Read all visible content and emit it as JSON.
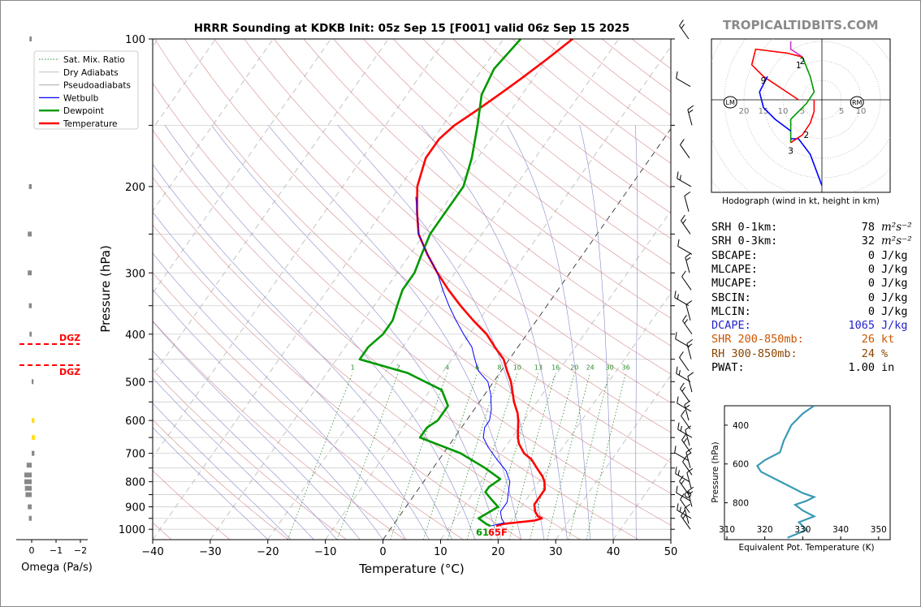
{
  "title": "HRRR Sounding at KDKB Init: 05z Sep 15 [F001] valid 06z Sep 15 2025",
  "brand": "TROPICALTIDBITS.COM",
  "colors": {
    "temperature": "#ff0000",
    "dewpoint": "#009900",
    "wetbulb": "#0000ff",
    "dry_adiabat": "#d68a8a",
    "moist_adiabat": "#8888cc",
    "mixing_ratio": "#2e8b2e",
    "hodo_0_1": "#cc33cc",
    "hodo_1_3": "#ff0000",
    "hodo_3_6": "#009900",
    "hodo_6_9": "#0000ff",
    "theta_e": "#3a9ab5",
    "dgz": "#ff0000",
    "dcape": "#2222cc",
    "shear": "#cc5500",
    "rh": "#8b4500"
  },
  "legend": [
    "Sat. Mix. Ratio",
    "Dry Adiabats",
    "Pseudoadiabats",
    "Wetbulb",
    "Dewpoint",
    "Temperature"
  ],
  "surface_label": "61",
  "surface_label_t": "65F",
  "dgz_label": "DGZ",
  "omega_label": "Omega (Pa/s)",
  "omega_ticks": [
    "0",
    "−1",
    "−2"
  ],
  "hodograph": {
    "caption": "Hodograph (wind in kt, height in km)",
    "lm_label": "LM",
    "rm_label": "RM",
    "ring_labels": [
      "20",
      "15",
      "10",
      "5",
      "5",
      "10"
    ],
    "height_labels": [
      "1",
      "2",
      "2",
      "3",
      "9"
    ]
  },
  "theta_e": {
    "ylabel": "Pressure (hPa)",
    "xlabel": "Equivalent Pot. Temperature (K)",
    "xticks": [
      "310",
      "320",
      "330",
      "340",
      "350"
    ],
    "yticks": [
      "400",
      "600",
      "800"
    ]
  },
  "stats": [
    {
      "label": "SRH 0-1km:",
      "value": "78",
      "unit": "m²s⁻²",
      "color": "#000000"
    },
    {
      "label": "SRH 0-3km:",
      "value": "32",
      "unit": "m²s⁻²",
      "color": "#000000"
    },
    {
      "label": "SBCAPE:",
      "value": "0",
      "unit": "J/kg",
      "color": "#000000"
    },
    {
      "label": "MLCAPE:",
      "value": "0",
      "unit": "J/kg",
      "color": "#000000"
    },
    {
      "label": "MUCAPE:",
      "value": "0",
      "unit": "J/kg",
      "color": "#000000"
    },
    {
      "label": "SBCIN:",
      "value": "0",
      "unit": "J/kg",
      "color": "#000000"
    },
    {
      "label": "MLCIN:",
      "value": "0",
      "unit": "J/kg",
      "color": "#000000"
    },
    {
      "label": "DCAPE:",
      "value": "1065",
      "unit": "J/kg",
      "color": "#2222cc"
    },
    {
      "label": "SHR 200-850mb:",
      "value": "26",
      "unit": "kt",
      "color": "#cc5500"
    },
    {
      "label": "RH 300-850mb:",
      "value": "24",
      "unit": "%",
      "color": "#8b4500"
    },
    {
      "label": "PWAT:",
      "value": "1.00",
      "unit": "in",
      "color": "#000000"
    }
  ],
  "chart_data": {
    "type": "line",
    "title": "HRRR Sounding at KDKB Init: 05z Sep 15 [F001] valid 06z Sep 15 2025",
    "xlabel": "Temperature (°C)",
    "ylabel": "Pressure (hPa)",
    "xlim": [
      -40,
      50
    ],
    "ylim": [
      1050,
      100
    ],
    "yscale": "log",
    "grid": true,
    "legend_position": "top-left",
    "x_ticks": [
      -40,
      -30,
      -20,
      -10,
      0,
      10,
      20,
      30,
      40,
      50
    ],
    "y_ticks": [
      100,
      200,
      300,
      400,
      500,
      600,
      700,
      800,
      900,
      1000
    ],
    "mixing_ratio_labels": [
      "1",
      "2",
      "4",
      "6",
      "8",
      "10",
      "13",
      "16",
      "20",
      "24",
      "30",
      "36"
    ],
    "mixing_ratio_values": [
      1,
      2,
      4,
      6,
      8,
      10,
      13,
      16,
      20,
      24,
      30,
      36
    ],
    "series": [
      {
        "name": "Temperature",
        "points": [
          [
            18,
            985
          ],
          [
            19,
            975
          ],
          [
            24,
            960
          ],
          [
            25,
            950
          ],
          [
            24,
            940
          ],
          [
            23,
            920
          ],
          [
            22,
            890
          ],
          [
            22,
            860
          ],
          [
            22,
            830
          ],
          [
            21,
            800
          ],
          [
            20,
            780
          ],
          [
            18,
            750
          ],
          [
            16,
            720
          ],
          [
            14,
            700
          ],
          [
            12,
            670
          ],
          [
            11,
            650
          ],
          [
            9,
            600
          ],
          [
            8,
            580
          ],
          [
            6,
            550
          ],
          [
            3,
            500
          ],
          [
            1,
            475
          ],
          [
            -1,
            450
          ],
          [
            -4,
            425
          ],
          [
            -7,
            400
          ],
          [
            -11,
            375
          ],
          [
            -15,
            350
          ],
          [
            -19,
            325
          ],
          [
            -23,
            300
          ],
          [
            -27,
            275
          ],
          [
            -31,
            250
          ],
          [
            -34,
            225
          ],
          [
            -37,
            200
          ],
          [
            -39,
            175
          ],
          [
            -39,
            160
          ],
          [
            -38,
            150
          ],
          [
            -36,
            140
          ],
          [
            -34,
            130
          ],
          [
            -32,
            120
          ],
          [
            -30,
            110
          ],
          [
            -28,
            100
          ]
        ]
      },
      {
        "name": "Dewpoint",
        "points": [
          [
            17,
            985
          ],
          [
            16,
            975
          ],
          [
            14,
            950
          ],
          [
            15,
            925
          ],
          [
            16,
            900
          ],
          [
            14,
            870
          ],
          [
            12,
            840
          ],
          [
            12,
            820
          ],
          [
            13,
            790
          ],
          [
            9,
            750
          ],
          [
            3,
            700
          ],
          [
            -6,
            650
          ],
          [
            -6,
            620
          ],
          [
            -5,
            600
          ],
          [
            -5,
            560
          ],
          [
            -8,
            520
          ],
          [
            -16,
            480
          ],
          [
            -26,
            450
          ],
          [
            -26,
            425
          ],
          [
            -25,
            400
          ],
          [
            -25,
            375
          ],
          [
            -26,
            350
          ],
          [
            -27,
            325
          ],
          [
            -27,
            300
          ],
          [
            -28,
            275
          ],
          [
            -29,
            250
          ],
          [
            -29,
            225
          ],
          [
            -29,
            200
          ],
          [
            -31,
            175
          ],
          [
            -34,
            150
          ],
          [
            -37,
            130
          ],
          [
            -38,
            115
          ],
          [
            -37,
            100
          ]
        ]
      },
      {
        "name": "Wetbulb",
        "points": [
          [
            17,
            985
          ],
          [
            19,
            970
          ],
          [
            18,
            950
          ],
          [
            17,
            920
          ],
          [
            17,
            880
          ],
          [
            16,
            840
          ],
          [
            15,
            800
          ],
          [
            13,
            760
          ],
          [
            10,
            720
          ],
          [
            7,
            680
          ],
          [
            5,
            650
          ],
          [
            4,
            620
          ],
          [
            4,
            600
          ],
          [
            3,
            570
          ],
          [
            1,
            530
          ],
          [
            -1,
            500
          ],
          [
            -4,
            475
          ],
          [
            -6,
            450
          ],
          [
            -8,
            425
          ],
          [
            -11,
            400
          ],
          [
            -14,
            375
          ],
          [
            -17,
            350
          ],
          [
            -20,
            325
          ],
          [
            -23,
            300
          ],
          [
            -27,
            275
          ],
          [
            -31,
            250
          ],
          [
            -34,
            225
          ],
          [
            -36,
            210
          ]
        ]
      }
    ]
  }
}
